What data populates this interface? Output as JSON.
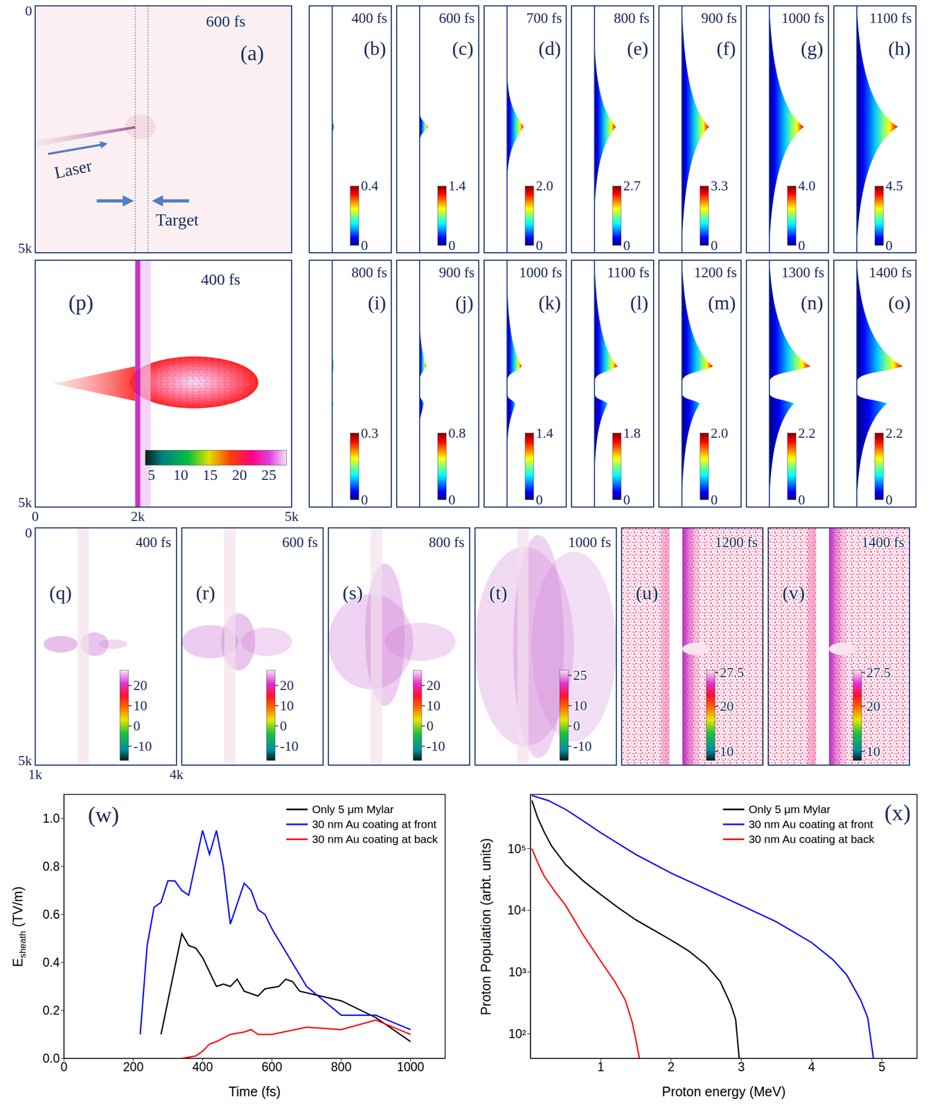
{
  "panels": [
    {
      "label": "(a)",
      "time": "600 fs",
      "annotations": [
        "Laser",
        "Target"
      ],
      "ylim": [
        0,
        5000
      ],
      "yticks": [
        0,
        {
          "value": 5000,
          "label": "5k"
        }
      ]
    },
    {
      "label": "(b)",
      "time": "400 fs",
      "colorbar": {
        "range": [
          0,
          0.4
        ],
        "ticks": [
          0,
          0.4
        ]
      }
    },
    {
      "label": "(c)",
      "time": "600 fs",
      "colorbar": {
        "range": [
          0,
          1.4
        ],
        "ticks": [
          0,
          1.4
        ]
      }
    },
    {
      "label": "(d)",
      "time": "700 fs",
      "colorbar": {
        "range": [
          0,
          2
        ],
        "ticks": [
          0,
          {
            "value": 2,
            "label": "2.0"
          }
        ]
      }
    },
    {
      "label": "(e)",
      "time": "800 fs",
      "colorbar": {
        "range": [
          0,
          2.7
        ],
        "ticks": [
          0,
          2.7
        ]
      }
    },
    {
      "label": "(f)",
      "time": "900 fs",
      "colorbar": {
        "range": [
          0,
          3.3
        ],
        "ticks": [
          0,
          3.3
        ]
      }
    },
    {
      "label": "(g)",
      "time": "1000 fs",
      "colorbar": {
        "range": [
          0,
          4
        ],
        "ticks": [
          0,
          {
            "value": 4,
            "label": "4.0"
          }
        ]
      }
    },
    {
      "label": "(h)",
      "time": "1100 fs",
      "colorbar": {
        "range": [
          0,
          4.5
        ],
        "ticks": [
          0,
          4.5
        ]
      }
    },
    {
      "label": "(p)",
      "time": "400 fs",
      "xlim": [
        0,
        5000
      ],
      "xticks": [
        0,
        {
          "value": 2000,
          "label": "2k"
        },
        {
          "value": 5000,
          "label": "5k"
        }
      ],
      "ylim": [
        0,
        5000
      ],
      "yticks": [
        {
          "value": 5000,
          "label": "5k"
        }
      ],
      "colorbar": {
        "range": [
          4,
          28
        ],
        "ticks": [
          5,
          10,
          15,
          20,
          25
        ]
      }
    },
    {
      "label": "(i)",
      "time": "800 fs",
      "colorbar": {
        "range": [
          0,
          0.3
        ],
        "ticks": [
          0,
          0.3
        ]
      }
    },
    {
      "label": "(j)",
      "time": "900 fs",
      "colorbar": {
        "range": [
          0,
          0.8
        ],
        "ticks": [
          0,
          0.8
        ]
      }
    },
    {
      "label": "(k)",
      "time": "1000 fs",
      "colorbar": {
        "range": [
          0,
          1.4
        ],
        "ticks": [
          0,
          1.4
        ]
      }
    },
    {
      "label": "(l)",
      "time": "1100 fs",
      "colorbar": {
        "range": [
          0,
          1.8
        ],
        "ticks": [
          0,
          1.8
        ]
      }
    },
    {
      "label": "(m)",
      "time": "1200 fs",
      "colorbar": {
        "range": [
          0,
          2
        ],
        "ticks": [
          0,
          {
            "value": 2,
            "label": "2.0"
          }
        ]
      }
    },
    {
      "label": "(n)",
      "time": "1300 fs",
      "colorbar": {
        "range": [
          0,
          2.2
        ],
        "ticks": [
          0,
          2.2
        ]
      }
    },
    {
      "label": "(o)",
      "time": "1400 fs",
      "colorbar": {
        "range": [
          0,
          2.2
        ],
        "ticks": [
          0,
          2.2
        ]
      }
    },
    {
      "label": "(q)",
      "time": "400 fs",
      "xlim": [
        1000,
        4000
      ],
      "xticks": [
        {
          "value": 1000,
          "label": "1k"
        },
        {
          "value": 4000,
          "label": "4k"
        }
      ],
      "ylim": [
        0,
        5000
      ],
      "yticks": [
        0,
        {
          "value": 5000,
          "label": "5k"
        }
      ],
      "colorbar": {
        "range": [
          -17,
          27.5
        ],
        "ticks": [
          -10,
          0,
          10,
          20
        ]
      }
    },
    {
      "label": "(r)",
      "time": "600 fs",
      "colorbar": {
        "range": [
          -17,
          27.5
        ],
        "ticks": [
          -10,
          0,
          10,
          20
        ]
      }
    },
    {
      "label": "(s)",
      "time": "800 fs",
      "colorbar": {
        "range": [
          -17,
          27.5
        ],
        "ticks": [
          -10,
          0,
          10,
          20
        ]
      }
    },
    {
      "label": "(t)",
      "time": "1000 fs",
      "colorbar": {
        "range": [
          -17,
          27.5
        ],
        "ticks": [
          -10,
          0,
          10,
          25
        ]
      }
    },
    {
      "label": "(u)",
      "time": "1200 fs",
      "colorbar": {
        "range": [
          8,
          28
        ],
        "ticks": [
          10,
          20,
          27.5
        ]
      }
    },
    {
      "label": "(v)",
      "time": "1400 fs",
      "colorbar": {
        "range": [
          8,
          28
        ],
        "ticks": [
          10,
          20,
          27.5
        ]
      }
    }
  ],
  "chart_data": [
    {
      "type": "line",
      "panel_label": "(w)",
      "xlabel": "Time (fs)",
      "ylabel": {
        "text": "E",
        "subscript": "sheath",
        "unit": "(TV/m)"
      },
      "xlim": [
        0,
        1100
      ],
      "xticks": [
        0,
        200,
        400,
        600,
        800,
        1000
      ],
      "ylim": [
        0,
        1.1
      ],
      "yticks": [
        {
          "value": 0,
          "label": "0.0"
        },
        {
          "value": 0.2,
          "label": "0.2"
        },
        {
          "value": 0.4,
          "label": "0.4"
        },
        {
          "value": 0.6,
          "label": "0.6"
        },
        {
          "value": 0.8,
          "label": "0.8"
        },
        {
          "value": 1,
          "label": "1.0"
        }
      ],
      "grid": false,
      "legend": "upper right",
      "series": [
        {
          "name": "Only 5 μm Mylar",
          "color": "#000000",
          "x": [
            280,
            340,
            360,
            380,
            400,
            440,
            460,
            480,
            500,
            520,
            560,
            580,
            620,
            640,
            660,
            680,
            800,
            900,
            1000
          ],
          "values": [
            0.1,
            0.52,
            0.47,
            0.46,
            0.42,
            0.3,
            0.31,
            0.3,
            0.33,
            0.28,
            0.26,
            0.29,
            0.3,
            0.33,
            0.32,
            0.28,
            0.24,
            0.17,
            0.07
          ]
        },
        {
          "name": "30 nm Au coating at front",
          "color": "#0000ff",
          "x": [
            220,
            240,
            260,
            280,
            300,
            320,
            340,
            360,
            400,
            420,
            440,
            460,
            480,
            520,
            540,
            560,
            580,
            600,
            700,
            800,
            900,
            1000
          ],
          "values": [
            0.1,
            0.47,
            0.63,
            0.65,
            0.74,
            0.74,
            0.7,
            0.68,
            0.95,
            0.85,
            0.95,
            0.8,
            0.56,
            0.73,
            0.7,
            0.62,
            0.6,
            0.54,
            0.3,
            0.18,
            0.18,
            0.12
          ]
        },
        {
          "name": "30 nm Au coating at back",
          "color": "#ff0000",
          "x": [
            340,
            380,
            400,
            420,
            440,
            480,
            520,
            540,
            560,
            600,
            700,
            800,
            900,
            1000
          ],
          "values": [
            0,
            0.01,
            0.03,
            0.06,
            0.07,
            0.1,
            0.11,
            0.12,
            0.1,
            0.1,
            0.13,
            0.12,
            0.16,
            0.1
          ]
        }
      ]
    },
    {
      "type": "line",
      "panel_label": "(x)",
      "xlabel": "Proton energy (MeV)",
      "ylabel": "Proton Population (arbt. units)",
      "log": "y",
      "xlim": [
        0,
        5.5
      ],
      "xticks": [
        1,
        2,
        3,
        4,
        5
      ],
      "ylim": [
        40,
        750000
      ],
      "yticks": [
        {
          "value": 100,
          "label": "10²"
        },
        {
          "value": 1000,
          "label": "10³"
        },
        {
          "value": 10000,
          "label": "10⁴"
        },
        {
          "value": 100000,
          "label": "10⁵"
        }
      ],
      "grid": false,
      "legend": "upper right",
      "series": [
        {
          "name": "Only 5 μm Mylar",
          "color": "#000000",
          "x": [
            0.02,
            0.1,
            0.2,
            0.3,
            0.5,
            0.75,
            1.0,
            1.25,
            1.5,
            1.75,
            2.0,
            2.25,
            2.5,
            2.7,
            2.85,
            2.92,
            2.97
          ],
          "values": [
            600000,
            320000,
            180000,
            110000,
            55000,
            30000,
            18000,
            11000,
            7000,
            4800,
            3300,
            2200,
            1300,
            700,
            300,
            170,
            40
          ]
        },
        {
          "name": "30 nm Au coating at front",
          "color": "#0000ff",
          "x": [
            0.02,
            0.25,
            0.5,
            0.75,
            1.0,
            1.5,
            2.0,
            2.5,
            3.0,
            3.5,
            4.0,
            4.3,
            4.5,
            4.7,
            4.8,
            4.88
          ],
          "values": [
            720000,
            600000,
            430000,
            280000,
            180000,
            80000,
            40000,
            22000,
            12000,
            6500,
            3000,
            1600,
            900,
            350,
            180,
            40
          ]
        },
        {
          "name": "30 nm Au coating at back",
          "color": "#ff0000",
          "x": [
            0.02,
            0.1,
            0.2,
            0.35,
            0.5,
            0.75,
            1.0,
            1.2,
            1.35,
            1.45,
            1.5,
            1.55
          ],
          "values": [
            100000,
            60000,
            35000,
            20000,
            12000,
            4000,
            1500,
            700,
            350,
            150,
            80,
            40
          ]
        }
      ]
    }
  ]
}
